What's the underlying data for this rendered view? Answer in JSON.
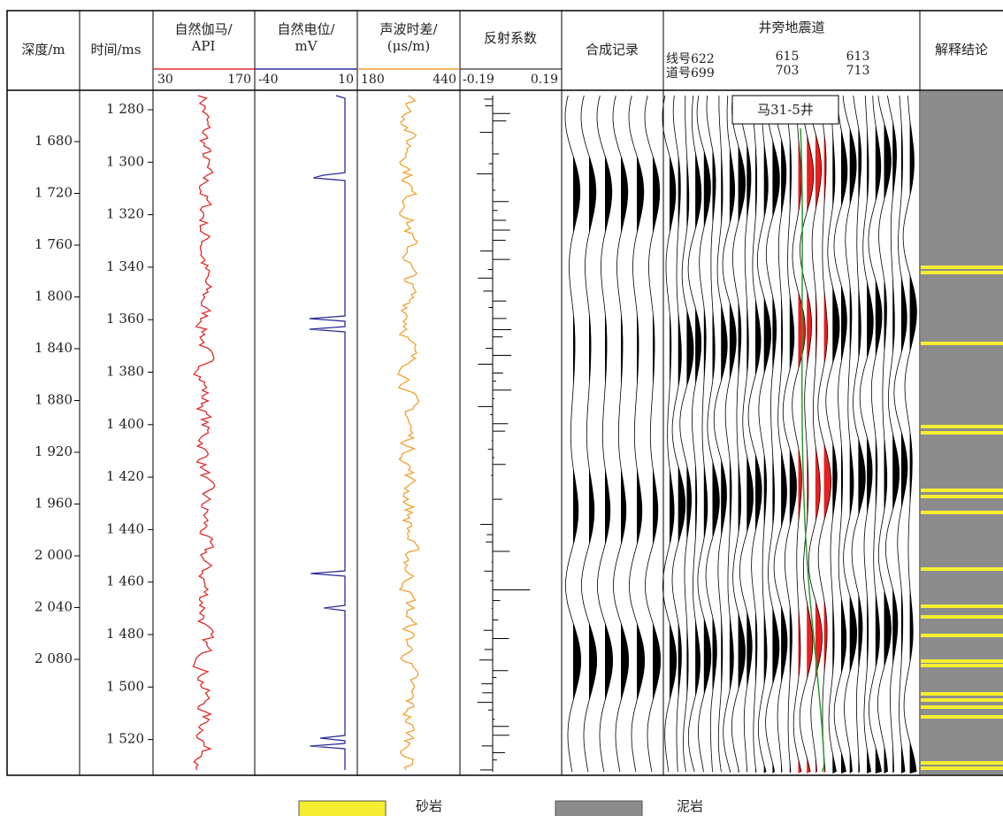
{
  "header": {
    "columns": [
      "深度/m",
      "时间/ms",
      "自然伽马/",
      "API",
      "自然电位/",
      "mV",
      "声波时差/",
      "(μs/m)",
      "反射系数",
      "合成记录",
      "井旁地震道",
      "解释结论"
    ],
    "scales": [
      [
        "30",
        "170"
      ],
      [
        "-40",
        "10"
      ],
      [
        "180",
        "440"
      ],
      [
        "-0.19",
        "0.19"
      ]
    ],
    "seismic": {
      "line_label": "线号622",
      "trace_label": "道号699",
      "line_mid": "615",
      "trace_mid": "703",
      "line_end": "613",
      "trace_end": "713"
    }
  },
  "depth_ticks": [
    "1 680",
    "1 720",
    "1 760",
    "1 800",
    "1 840",
    "1 880",
    "1 920",
    "1 960",
    "2 000",
    "2 040",
    "2 080"
  ],
  "time_ticks": [
    "1 280",
    "1 300",
    "1 320",
    "1 340",
    "1 360",
    "1 380",
    "1 400",
    "1 420",
    "1 440",
    "1 460",
    "1 480",
    "1 500",
    "1 520"
  ],
  "well_label": "马31-5井",
  "legend": [
    "砂岩",
    "泥岩"
  ]
}
